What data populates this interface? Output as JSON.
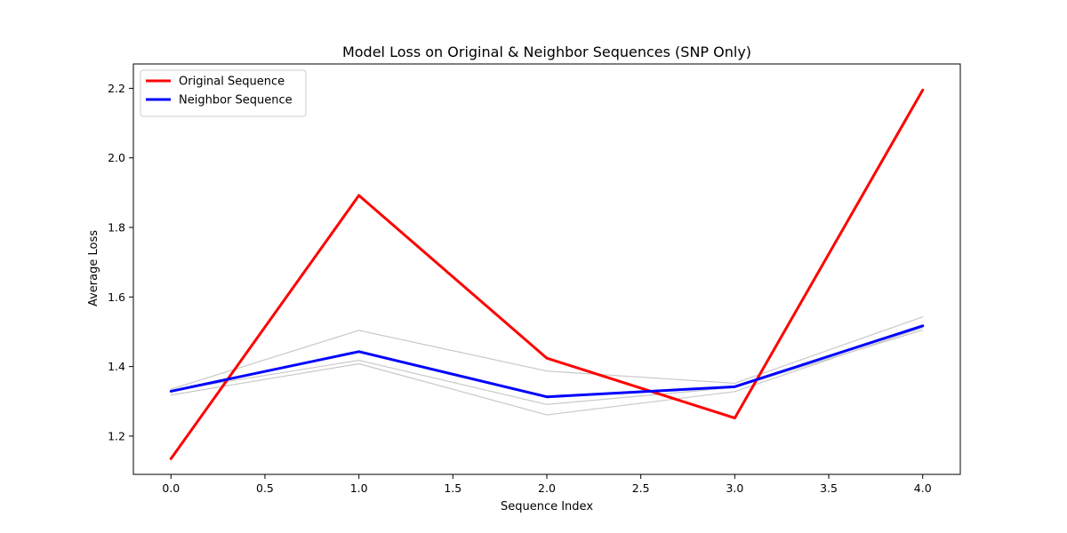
{
  "chart_data": {
    "type": "line",
    "title": "Model Loss on Original & Neighbor Sequences (SNP Only)",
    "xlabel": "Sequence Index",
    "ylabel": "Average Loss",
    "xlim": [
      -0.2,
      4.2
    ],
    "ylim": [
      1.09,
      2.27
    ],
    "xticks": [
      0.0,
      0.5,
      1.0,
      1.5,
      2.0,
      2.5,
      3.0,
      3.5,
      4.0
    ],
    "xtick_labels": [
      "0.0",
      "0.5",
      "1.0",
      "1.5",
      "2.0",
      "2.5",
      "3.0",
      "3.5",
      "4.0"
    ],
    "yticks": [
      1.2,
      1.4,
      1.6,
      1.8,
      2.0,
      2.2
    ],
    "ytick_labels": [
      "1.2",
      "1.4",
      "1.6",
      "1.8",
      "2.0",
      "2.2"
    ],
    "grid": false,
    "legend_position": "top-left",
    "x": [
      0,
      1,
      2,
      3,
      4
    ],
    "series": [
      {
        "name": "Original Sequence",
        "color": "#ff0000",
        "role": "main",
        "values": [
          1.135,
          1.892,
          1.424,
          1.252,
          2.195
        ]
      },
      {
        "name": "Neighbor Sequence",
        "color": "#0000ff",
        "role": "main",
        "values": [
          1.329,
          1.443,
          1.313,
          1.342,
          1.517
        ]
      },
      {
        "color": "#c8c8c8",
        "role": "background",
        "values": [
          1.335,
          1.504,
          1.387,
          1.352,
          1.543
        ]
      },
      {
        "color": "#c8c8c8",
        "role": "background",
        "values": [
          1.331,
          1.418,
          1.291,
          1.34,
          1.505
        ]
      },
      {
        "color": "#c8c8c8",
        "role": "background",
        "values": [
          1.318,
          1.408,
          1.261,
          1.328,
          1.512
        ]
      }
    ]
  }
}
